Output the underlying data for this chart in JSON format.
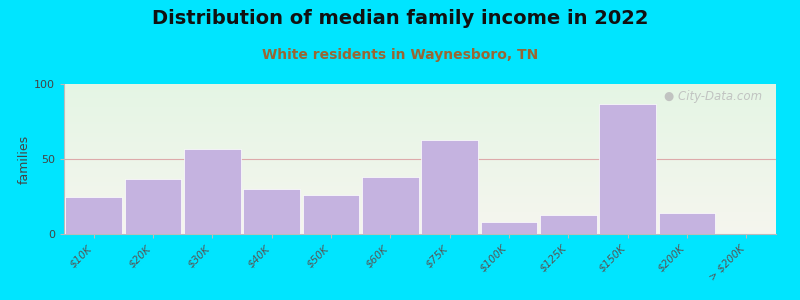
{
  "title": "Distribution of median family income in 2022",
  "subtitle": "White residents in Waynesboro, TN",
  "ylabel": "families",
  "categories": [
    "$10K",
    "$20K",
    "$30K",
    "$40K",
    "$50K",
    "$60K",
    "$75K",
    "$100K",
    "$125K",
    "$150K",
    "$200K",
    "> $200K"
  ],
  "values": [
    25,
    37,
    57,
    30,
    26,
    38,
    63,
    8,
    13,
    87,
    14,
    0
  ],
  "bar_color": "#c5b3e0",
  "bar_edge_color": "#ffffff",
  "background_outer": "#00e5ff",
  "background_plot_top": "#e4f5e4",
  "background_plot_bottom": "#f5f5ee",
  "title_fontsize": 14,
  "subtitle_fontsize": 10,
  "subtitle_color": "#996633",
  "ylabel_fontsize": 9,
  "tick_fontsize": 7.5,
  "ylim": [
    0,
    100
  ],
  "yticks": [
    0,
    50,
    100
  ],
  "grid_color": "#ddaaaa",
  "watermark": " City-Data.com"
}
